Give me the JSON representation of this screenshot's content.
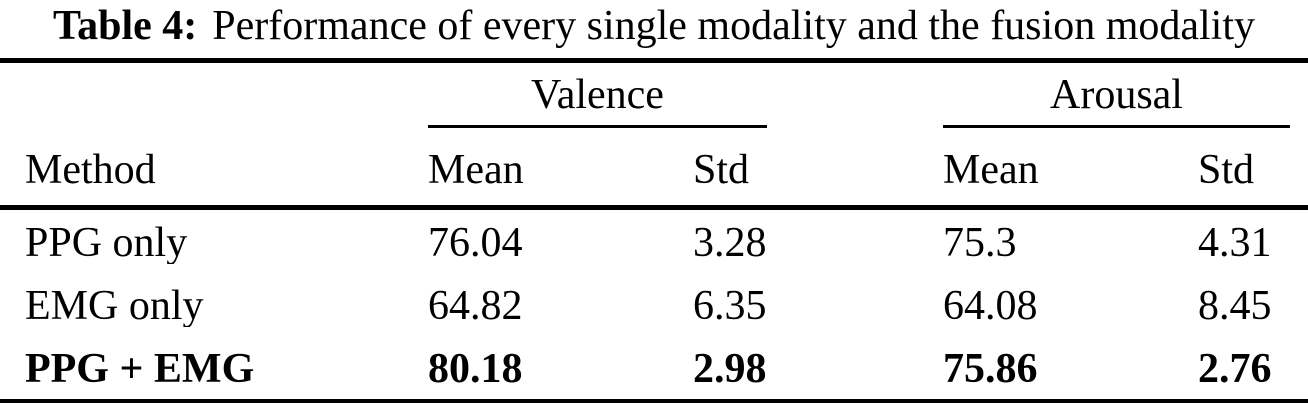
{
  "caption": {
    "label": "Table 4:",
    "text": "Performance of every single modality and the fusion modality"
  },
  "table": {
    "groups": [
      {
        "label": "Valence"
      },
      {
        "label": "Arousal"
      }
    ],
    "columns": [
      "Method",
      "Mean",
      "Std",
      "Mean",
      "Std"
    ],
    "rows": [
      {
        "cells": [
          "PPG only",
          "76.04",
          "3.28",
          "75.3",
          "4.31"
        ],
        "bold": false
      },
      {
        "cells": [
          "EMG only",
          "64.82",
          "6.35",
          "64.08",
          "8.45"
        ],
        "bold": false
      },
      {
        "cells": [
          "PPG + EMG",
          "80.18",
          "2.98",
          "75.86",
          "2.76"
        ],
        "bold": true
      }
    ]
  },
  "colors": {
    "text": "#000000",
    "background": "#ffffff",
    "rules": "#000000"
  },
  "chart_data": {
    "type": "table",
    "title": "Table 4: Performance of every single modality and the fusion modality",
    "column_groups": [
      "Valence",
      "Arousal"
    ],
    "columns": [
      "Method",
      "Valence Mean",
      "Valence Std",
      "Arousal Mean",
      "Arousal Std"
    ],
    "rows": [
      [
        "PPG only",
        76.04,
        3.28,
        75.3,
        4.31
      ],
      [
        "EMG only",
        64.82,
        6.35,
        64.08,
        8.45
      ],
      [
        "PPG + EMG",
        80.18,
        2.98,
        75.86,
        2.76
      ]
    ]
  }
}
